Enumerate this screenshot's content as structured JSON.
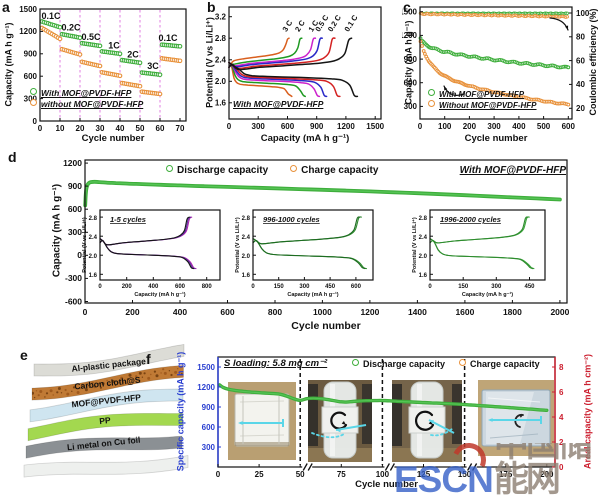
{
  "watermark": {
    "latin": "ESCN",
    "cn": "中国储能网",
    "latin_color": "#3560c8",
    "cn_color": "#8d7f72",
    "accent_color": "#c0392b"
  },
  "schematic": {
    "label": "e",
    "layers": [
      {
        "label": "Al-plastic package",
        "color": "#dcdcd6"
      },
      {
        "label": "Carbon cloth@S",
        "color": "#c07a35"
      },
      {
        "label": "MOF@PVDF-HFP",
        "color": "#cfe5f0"
      },
      {
        "label": "PP",
        "color": "#a3d84f"
      },
      {
        "label": "Li metal on Cu foil",
        "color": "#8b9094"
      },
      {
        "label": "",
        "color": "#eef0ee"
      }
    ]
  },
  "chart_data": {
    "a": {
      "type": "scatter",
      "label": "a",
      "xlabel": "Cycle number",
      "ylabel": "Capacity (mA h g⁻¹)",
      "xlim": [
        0,
        73
      ],
      "ylim": [
        0,
        1500
      ],
      "xticks": [
        0,
        10,
        20,
        30,
        40,
        50,
        60,
        70
      ],
      "yticks": [
        0,
        300,
        600,
        900,
        1200,
        1500
      ],
      "divider_color": "#e07ce0",
      "rate_dividers": [
        10,
        20,
        30,
        40,
        50,
        60
      ],
      "rate_labels": [
        {
          "text": "0.1C",
          "x": 1,
          "y": 1408
        },
        {
          "text": "0.2C",
          "x": 11,
          "y": 1252
        },
        {
          "text": "0.5C",
          "x": 21,
          "y": 1122
        },
        {
          "text": "1C",
          "x": 32.5,
          "y": 1008
        },
        {
          "text": "2C",
          "x": 42,
          "y": 888
        },
        {
          "text": "3C",
          "x": 52,
          "y": 736
        },
        {
          "text": "0.1C",
          "x": 59.5,
          "y": 1112
        }
      ],
      "series": [
        {
          "name": "With MOF@PVDF-HFP",
          "color": "#3fae3c",
          "segments": [
            [
              1,
              10,
              1332,
              1256
            ],
            [
              11,
              20,
              1162,
              1116
            ],
            [
              21,
              30,
              1042,
              1006
            ],
            [
              31,
              40,
              932,
              900
            ],
            [
              41,
              50,
              816,
              780
            ],
            [
              51,
              60,
              648,
              620
            ],
            [
              61,
              70,
              1022,
              1000
            ]
          ]
        },
        {
          "name": "without MOF@PVDF-HFP",
          "color": "#e8923c",
          "segments": [
            [
              1,
              10,
              1246,
              1100
            ],
            [
              11,
              20,
              962,
              890
            ],
            [
              21,
              30,
              792,
              736
            ],
            [
              31,
              40,
              652,
              606
            ],
            [
              41,
              50,
              508,
              466
            ],
            [
              51,
              60,
              392,
              362
            ],
            [
              61,
              70,
              838,
              806
            ]
          ]
        }
      ],
      "legend": [
        {
          "label": "With MOF@PVDF-HFP",
          "color": "#3fae3c"
        },
        {
          "label": "without MOF@PVDF-HFP",
          "color": "#e8923c"
        }
      ]
    },
    "b": {
      "type": "line",
      "label": "b",
      "xlabel": "Capacity (mA h g⁻¹)",
      "ylabel": "Potential (V vs Li/Li⁺)",
      "xlim": [
        0,
        1560
      ],
      "ylim": [
        1.3,
        3.38
      ],
      "xticks": [
        0,
        300,
        600,
        900,
        1200,
        1500
      ],
      "yticks": [
        1.6,
        2.0,
        2.4,
        2.8,
        3.2
      ],
      "note": "With MOF@PVDF-HFP",
      "curves": [
        {
          "label": "3 C",
          "color": "#d95f1e",
          "capacity": 645,
          "discharge_plateau_v": 1.93,
          "charge_plateau_v": 2.52
        },
        {
          "label": "2 C",
          "color": "#1f9a22",
          "capacity": 782,
          "discharge_plateau_v": 1.98,
          "charge_plateau_v": 2.46
        },
        {
          "label": "1 C",
          "color": "#cc22cc",
          "capacity": 928,
          "discharge_plateau_v": 2.02,
          "charge_plateau_v": 2.43
        },
        {
          "label": "0.5 C",
          "color": "#2a2ac8",
          "capacity": 1002,
          "discharge_plateau_v": 2.05,
          "charge_plateau_v": 2.41
        },
        {
          "label": "0.2 C",
          "color": "#d42222",
          "capacity": 1138,
          "discharge_plateau_v": 2.07,
          "charge_plateau_v": 2.38
        },
        {
          "label": "0.1 C",
          "color": "#151515",
          "capacity": 1318,
          "discharge_plateau_v": 2.09,
          "charge_plateau_v": 2.36
        }
      ]
    },
    "c": {
      "type": "scatter",
      "label": "c",
      "xlabel": "Cycle number",
      "ylabel_left": "Capacity (mA h g⁻¹)",
      "ylabel_right": "Coulombic efficiency (%)",
      "xlim": [
        0,
        615
      ],
      "ylim_left": [
        140,
        1560
      ],
      "ylim_right": [
        11,
        105
      ],
      "xticks": [
        0,
        100,
        200,
        300,
        400,
        500,
        600
      ],
      "yticks_left": [
        300,
        600,
        900,
        1200,
        1500
      ],
      "yticks_right": [
        20,
        40,
        60,
        80,
        100
      ],
      "legend": [
        {
          "label": "With MOF@PVDF-HFP",
          "color": "#3fae3c"
        },
        {
          "label": "Without MOF@PVDF-HFP",
          "color": "#e8923c"
        }
      ],
      "capacity_series": [
        {
          "name": "With MOF@PVDF-HFP",
          "color": "#3fae3c",
          "points": [
            [
              2,
              1162
            ],
            [
              10,
              1120
            ],
            [
              20,
              1092
            ],
            [
              35,
              1062
            ],
            [
              50,
              1040
            ],
            [
              70,
              1018
            ],
            [
              90,
              1000
            ],
            [
              110,
              988
            ],
            [
              130,
              972
            ],
            [
              150,
              962
            ],
            [
              170,
              950
            ],
            [
              190,
              940
            ],
            [
              210,
              930
            ],
            [
              230,
              922
            ],
            [
              250,
              912
            ],
            [
              270,
              903
            ],
            [
              290,
              895
            ],
            [
              310,
              887
            ],
            [
              330,
              878
            ],
            [
              350,
              870
            ],
            [
              370,
              862
            ],
            [
              390,
              855
            ],
            [
              410,
              848
            ],
            [
              430,
              842
            ],
            [
              450,
              836
            ],
            [
              470,
              830
            ],
            [
              490,
              824
            ],
            [
              510,
              818
            ],
            [
              530,
              812
            ],
            [
              550,
              806
            ],
            [
              570,
              800
            ],
            [
              590,
              795
            ],
            [
              600,
              792
            ]
          ]
        },
        {
          "name": "Without MOF@PVDF-HFP",
          "color": "#e8923c",
          "points": [
            [
              2,
              1118
            ],
            [
              8,
              1060
            ],
            [
              15,
              1000
            ],
            [
              25,
              935
            ],
            [
              35,
              880
            ],
            [
              45,
              838
            ],
            [
              55,
              800
            ],
            [
              65,
              768
            ],
            [
              75,
              740
            ],
            [
              85,
              716
            ],
            [
              95,
              695
            ],
            [
              110,
              668
            ],
            [
              125,
              645
            ],
            [
              140,
              625
            ],
            [
              155,
              607
            ],
            [
              170,
              590
            ],
            [
              185,
              575
            ],
            [
              200,
              560
            ],
            [
              220,
              542
            ],
            [
              240,
              525
            ],
            [
              260,
              510
            ],
            [
              280,
              496
            ],
            [
              300,
              482
            ],
            [
              320,
              468
            ],
            [
              340,
              455
            ],
            [
              360,
              443
            ],
            [
              380,
              432
            ],
            [
              400,
              420
            ],
            [
              420,
              410
            ],
            [
              440,
              398
            ],
            [
              460,
              388
            ],
            [
              480,
              378
            ],
            [
              500,
              368
            ],
            [
              520,
              358
            ],
            [
              540,
              348
            ],
            [
              560,
              340
            ],
            [
              580,
              333
            ],
            [
              600,
              326
            ]
          ]
        }
      ],
      "coulombic_efficiency": [
        {
          "name": "With MOF@PVDF-HFP",
          "color": "#3fae3c",
          "value": 99.6
        },
        {
          "name": "Without MOF@PVDF-HFP",
          "color": "#e8923c",
          "value": 98.7
        }
      ]
    },
    "d": {
      "type": "line",
      "label": "d",
      "xlabel": "Cycle number",
      "ylabel": "Capacity (mA h g⁻¹)",
      "xlim": [
        0,
        2030
      ],
      "ylim": [
        -620,
        1240
      ],
      "xticks": [
        0,
        200,
        400,
        600,
        800,
        1000,
        1200,
        1400,
        1600,
        1800,
        2000
      ],
      "yticks": [
        -600,
        -300,
        0,
        300,
        600,
        900,
        1200
      ],
      "note": "With MOF@PVDF-HFP",
      "legend": [
        {
          "label": "Discharge capacity",
          "color": "#3fae3c"
        },
        {
          "label": "Charge capacity",
          "color": "#e8923c"
        }
      ],
      "discharge_points": [
        [
          1,
          650
        ],
        [
          3,
          780
        ],
        [
          6,
          868
        ],
        [
          10,
          912
        ],
        [
          16,
          940
        ],
        [
          25,
          952
        ],
        [
          40,
          956
        ],
        [
          60,
          952
        ],
        [
          90,
          946
        ],
        [
          130,
          940
        ],
        [
          180,
          933
        ],
        [
          240,
          926
        ],
        [
          320,
          917
        ],
        [
          400,
          909
        ],
        [
          500,
          899
        ],
        [
          600,
          890
        ],
        [
          700,
          881
        ],
        [
          800,
          872
        ],
        [
          900,
          862
        ],
        [
          1000,
          852
        ],
        [
          1100,
          842
        ],
        [
          1200,
          831
        ],
        [
          1300,
          820
        ],
        [
          1400,
          808
        ],
        [
          1500,
          795
        ],
        [
          1600,
          782
        ],
        [
          1700,
          768
        ],
        [
          1800,
          754
        ],
        [
          1900,
          740
        ],
        [
          2000,
          726
        ]
      ],
      "insets": [
        {
          "title": "1-5 cycles",
          "xlim": [
            0,
            900
          ],
          "xticks": [
            0,
            200,
            400,
            600,
            800
          ],
          "capacity": 720,
          "discharge_plateau_v": 2.02,
          "charge_plateau_v": 2.36,
          "colors": [
            "#b025b0",
            "#5a2d9e",
            "#151515"
          ]
        },
        {
          "title": "996-1000 cycles",
          "xlim": [
            0,
            700
          ],
          "xticks": [
            0,
            150,
            300,
            450,
            600
          ],
          "capacity": 662,
          "discharge_plateau_v": 2.0,
          "charge_plateau_v": 2.38,
          "colors": [
            "#2e8b2e",
            "#1d6b21"
          ]
        },
        {
          "title": "1996-2000 cycles",
          "xlim": [
            0,
            520
          ],
          "xticks": [
            0,
            150,
            300,
            450
          ],
          "capacity": 470,
          "discharge_plateau_v": 1.98,
          "charge_plateau_v": 2.4,
          "colors": [
            "#3aa33a",
            "#2e8b2e"
          ]
        }
      ],
      "inset_ylabel": "Potential (V vs Li/Li⁺)",
      "inset_xlabel": "Capacity (mA h g⁻¹)",
      "inset_yticks": [
        1.6,
        2.0,
        2.4,
        2.8
      ],
      "inset_ylim": [
        1.48,
        2.95
      ]
    },
    "f": {
      "type": "line",
      "label": "f",
      "xlabel": "Cycle number",
      "ylabel_left": "Specific capacity (mA h g⁻¹)",
      "ylabel_right": "Areal capacity (mA h cm⁻²)",
      "axis_color_left": "#2a3fd0",
      "axis_color_right": "#cc2030",
      "xlim": [
        0,
        205
      ],
      "ylim_left": [
        0,
        1650
      ],
      "ylim_right": [
        0,
        8.8
      ],
      "xticks": [
        0,
        25,
        50,
        75,
        100,
        125,
        150,
        175,
        200
      ],
      "yticks_left": [
        300,
        600,
        900,
        1200,
        1500
      ],
      "yticks_right": [
        0,
        2,
        4,
        6,
        8
      ],
      "note": "S loading: 5.8 mg cm⁻²",
      "legend": [
        {
          "label": "Discharge capacity",
          "color": "#3fae3c"
        },
        {
          "label": "Charge capacity",
          "color": "#e8923c"
        }
      ],
      "section_dividers": [
        50,
        100,
        150
      ],
      "discharge_points": [
        [
          1,
          1232
        ],
        [
          3,
          1195
        ],
        [
          6,
          1168
        ],
        [
          10,
          1150
        ],
        [
          14,
          1138
        ],
        [
          18,
          1128
        ],
        [
          22,
          1120
        ],
        [
          26,
          1113
        ],
        [
          30,
          1107
        ],
        [
          34,
          1101
        ],
        [
          38,
          1090
        ],
        [
          42,
          1062
        ],
        [
          46,
          1024
        ],
        [
          50,
          1000
        ],
        [
          54,
          1024
        ],
        [
          58,
          1032
        ],
        [
          62,
          1026
        ],
        [
          66,
          1014
        ],
        [
          70,
          998
        ],
        [
          74,
          980
        ],
        [
          78,
          974
        ],
        [
          82,
          982
        ],
        [
          86,
          990
        ],
        [
          90,
          994
        ],
        [
          95,
          996
        ],
        [
          100,
          998
        ],
        [
          106,
          990
        ],
        [
          112,
          982
        ],
        [
          118,
          975
        ],
        [
          124,
          968
        ],
        [
          130,
          962
        ],
        [
          136,
          955
        ],
        [
          142,
          948
        ],
        [
          148,
          940
        ],
        [
          154,
          930
        ],
        [
          160,
          920
        ],
        [
          166,
          910
        ],
        [
          172,
          900
        ],
        [
          178,
          890
        ],
        [
          184,
          879
        ],
        [
          190,
          868
        ],
        [
          196,
          857
        ],
        [
          200,
          850
        ]
      ],
      "photos": [
        "flat-pouch-cell",
        "pouch-cell-bent-on-bottle",
        "pouch-cell-bent-on-bottle-2",
        "flat-pouch-cell-after-bending"
      ]
    }
  }
}
